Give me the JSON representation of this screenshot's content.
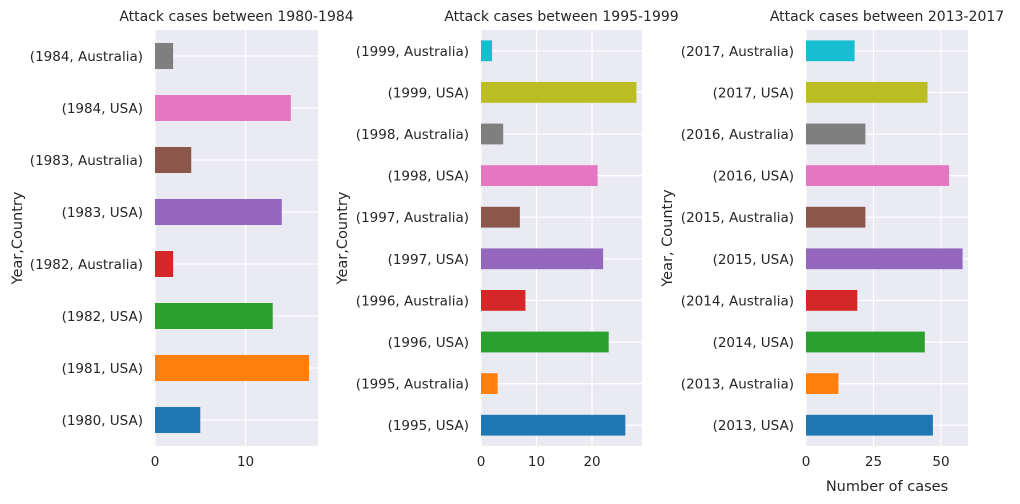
{
  "chart_data": [
    {
      "type": "bar",
      "orientation": "horizontal",
      "title": "Attack cases between 1980-1984",
      "ylabel": "Year,Country",
      "xlabel": "",
      "xlim": [
        0,
        18
      ],
      "xticks": [
        0,
        10
      ],
      "grid": true,
      "categories": [
        "(1980, USA)",
        "(1981, USA)",
        "(1982, USA)",
        "(1982, Australia)",
        "(1983, USA)",
        "(1983, Australia)",
        "(1984, USA)",
        "(1984, Australia)"
      ],
      "values": [
        5,
        17,
        13,
        2,
        14,
        4,
        15,
        2
      ],
      "colors": [
        "#1f77b4",
        "#ff7f0e",
        "#2ca02c",
        "#d62728",
        "#9467bd",
        "#8c564b",
        "#e377c2",
        "#7f7f7f"
      ]
    },
    {
      "type": "bar",
      "orientation": "horizontal",
      "title": "Attack cases between 1995-1999",
      "ylabel": "Year,Country",
      "xlabel": "",
      "xlim": [
        0,
        29
      ],
      "xticks": [
        0,
        10,
        20
      ],
      "grid": true,
      "categories": [
        "(1995, USA)",
        "(1995, Australia)",
        "(1996, USA)",
        "(1996, Australia)",
        "(1997, USA)",
        "(1997, Australia)",
        "(1998, USA)",
        "(1998, Australia)",
        "(1999, USA)",
        "(1999, Australia)"
      ],
      "values": [
        26,
        3,
        23,
        8,
        22,
        7,
        21,
        4,
        28,
        2
      ],
      "colors": [
        "#1f77b4",
        "#ff7f0e",
        "#2ca02c",
        "#d62728",
        "#9467bd",
        "#8c564b",
        "#e377c2",
        "#7f7f7f",
        "#bcbd22",
        "#17becf"
      ]
    },
    {
      "type": "bar",
      "orientation": "horizontal",
      "title": "Attack cases between 2013-2017",
      "ylabel": "Year, Country",
      "xlabel": "Number of cases",
      "xlim": [
        0,
        60
      ],
      "xticks": [
        0,
        25,
        50
      ],
      "grid": true,
      "categories": [
        "(2013, USA)",
        "(2013, Australia)",
        "(2014, USA)",
        "(2014, Australia)",
        "(2015, USA)",
        "(2015, Australia)",
        "(2016, USA)",
        "(2016, Australia)",
        "(2017, USA)",
        "(2017, Australia)"
      ],
      "values": [
        47,
        12,
        44,
        19,
        58,
        22,
        53,
        22,
        45,
        18
      ],
      "colors": [
        "#1f77b4",
        "#ff7f0e",
        "#2ca02c",
        "#d62728",
        "#9467bd",
        "#8c564b",
        "#e377c2",
        "#7f7f7f",
        "#bcbd22",
        "#17becf"
      ]
    }
  ]
}
